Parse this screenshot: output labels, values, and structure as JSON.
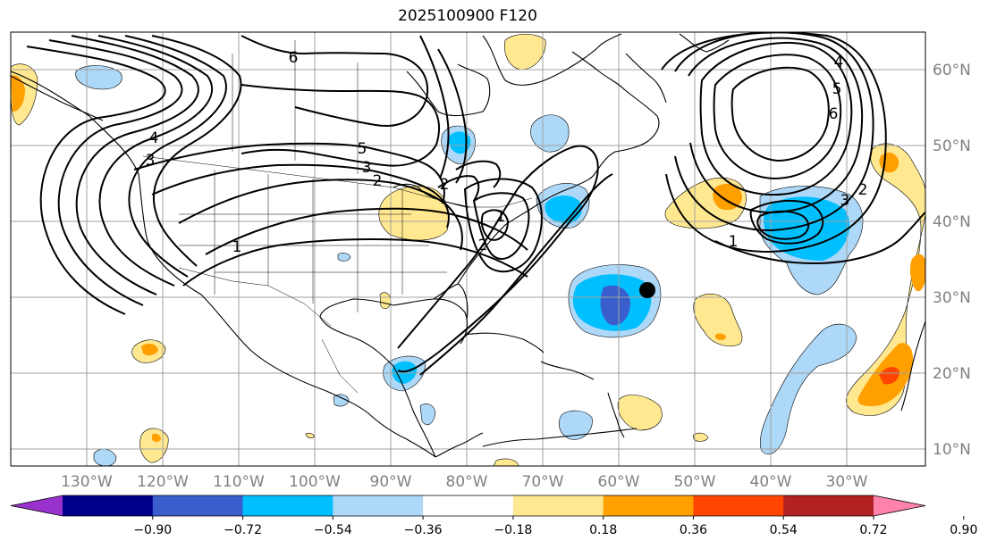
{
  "title": "2025100900 F120",
  "longitude_labels": [
    "130°W",
    "120°W",
    "110°W",
    "100°W",
    "90°W",
    "80°W",
    "70°W",
    "60°W",
    "50°W",
    "40°W",
    "30°W"
  ],
  "latitude_labels": [
    "60°N",
    "50°N",
    "40°N",
    "30°N",
    "20°N",
    "10°N"
  ],
  "colorbar": {
    "tick_labels": [
      "−0.90",
      "−0.72",
      "−0.54",
      "−0.36",
      "−0.18",
      "0.18",
      "0.36",
      "0.54",
      "0.72",
      "0.90"
    ],
    "colors": [
      "#9932cc",
      "#00008b",
      "#3a5fcd",
      "#00bfff",
      "#add8f7",
      "#ffffff",
      "#ffe88f",
      "#ff9f00",
      "#ff4500",
      "#b22222",
      "#ff82ab"
    ]
  },
  "contour_labels": [
    "6",
    "5",
    "4",
    "3",
    "2",
    "1",
    "2",
    "1",
    "2",
    "3",
    "4",
    "5",
    "6",
    "2",
    "3",
    "1"
  ],
  "colors": {
    "land_outline": "#000000",
    "grid": "#a0a0a0",
    "axis_label": "#808080"
  }
}
